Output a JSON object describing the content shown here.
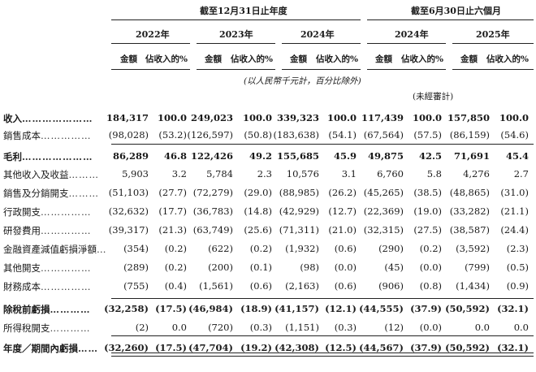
{
  "headers": {
    "group1_title": "截至12月31日止年度",
    "group2_title": "截至6月30日止六個月",
    "years": [
      "2022年",
      "2023年",
      "2024年",
      "2024年",
      "2025年"
    ],
    "amount_label": "金額",
    "pct_label": "佔收入的%",
    "currency_note": "(以人民幣千元計，百分比除外)",
    "unaudited_note": "(未經審計)"
  },
  "rows": [
    {
      "label": "收入",
      "dots": "…………………",
      "bold": true,
      "values": [
        "184,317",
        "100.0",
        "249,023",
        "100.0",
        "339,323",
        "100.0",
        "117,439",
        "100.0",
        "157,850",
        "100.0"
      ]
    },
    {
      "label": "銷售成本",
      "dots": "……………",
      "bold": false,
      "values": [
        "(98,028)",
        "(53.2)",
        "(126,597)",
        "(50.8)",
        "(183,638)",
        "(54.1)",
        "(67,564)",
        "(57.5)",
        "(86,159)",
        "(54.6)"
      ]
    },
    {
      "label": "毛利",
      "dots": "…………………",
      "bold": true,
      "values": [
        "86,289",
        "46.8",
        "122,426",
        "49.2",
        "155,685",
        "45.9",
        "49,875",
        "42.5",
        "71,691",
        "45.4"
      ]
    },
    {
      "label": "其他收入及收益",
      "dots": "………",
      "bold": false,
      "values": [
        "5,903",
        "3.2",
        "5,784",
        "2.3",
        "10,576",
        "3.1",
        "6,760",
        "5.8",
        "4,276",
        "2.7"
      ]
    },
    {
      "label": "銷售及分銷開支",
      "dots": "………",
      "bold": false,
      "values": [
        "(51,103)",
        "(27.7)",
        "(72,279)",
        "(29.0)",
        "(88,985)",
        "(26.2)",
        "(45,265)",
        "(38.5)",
        "(48,865)",
        "(31.0)"
      ]
    },
    {
      "label": "行政開支",
      "dots": "……………",
      "bold": false,
      "values": [
        "(32,632)",
        "(17.7)",
        "(36,783)",
        "(14.8)",
        "(42,929)",
        "(12.7)",
        "(22,369)",
        "(19.0)",
        "(33,282)",
        "(21.1)"
      ]
    },
    {
      "label": "研發費用",
      "dots": "……………",
      "bold": false,
      "values": [
        "(39,317)",
        "(21.3)",
        "(63,749)",
        "(25.6)",
        "(71,311)",
        "(21.0)",
        "(32,315)",
        "(27.5)",
        "(38,587)",
        "(24.4)"
      ]
    },
    {
      "label": "金融資產減值虧損淨額",
      "dots": "…",
      "bold": false,
      "values": [
        "(354)",
        "(0.2)",
        "(622)",
        "(0.2)",
        "(1,932)",
        "(0.6)",
        "(290)",
        "(0.2)",
        "(3,592)",
        "(2.3)"
      ]
    },
    {
      "label": "其他開支",
      "dots": "……………",
      "bold": false,
      "values": [
        "(289)",
        "(0.2)",
        "(200)",
        "(0.1)",
        "(98)",
        "(0.0)",
        "(45)",
        "(0.0)",
        "(799)",
        "(0.5)"
      ]
    },
    {
      "label": "財務成本",
      "dots": "……………",
      "bold": false,
      "values": [
        "(755)",
        "(0.4)",
        "(1,561)",
        "(0.6)",
        "(2,163)",
        "(0.6)",
        "(906)",
        "(0.8)",
        "(1,434)",
        "(0.9)"
      ]
    },
    {
      "label": "除稅前虧損",
      "dots": "…………",
      "bold": true,
      "values": [
        "(32,258)",
        "(17.5)",
        "(46,984)",
        "(18.9)",
        "(41,157)",
        "(12.1)",
        "(44,555)",
        "(37.9)",
        "(50,592)",
        "(32.1)"
      ]
    },
    {
      "label": "所得稅開支",
      "dots": "…………",
      "bold": false,
      "values": [
        "(2)",
        "0.0",
        "(720)",
        "(0.3)",
        "(1,151)",
        "(0.3)",
        "(12)",
        "(0.0)",
        "0.0",
        "0.0"
      ]
    },
    {
      "label": "年度／期間內虧損",
      "dots": "……",
      "bold": true,
      "values": [
        "(32,260)",
        "(17.5)",
        "(47,704)",
        "(19.2)",
        "(42,308)",
        "(12.5)",
        "(44,567)",
        "(37.9)",
        "(50,592)",
        "(32.1)"
      ]
    }
  ]
}
